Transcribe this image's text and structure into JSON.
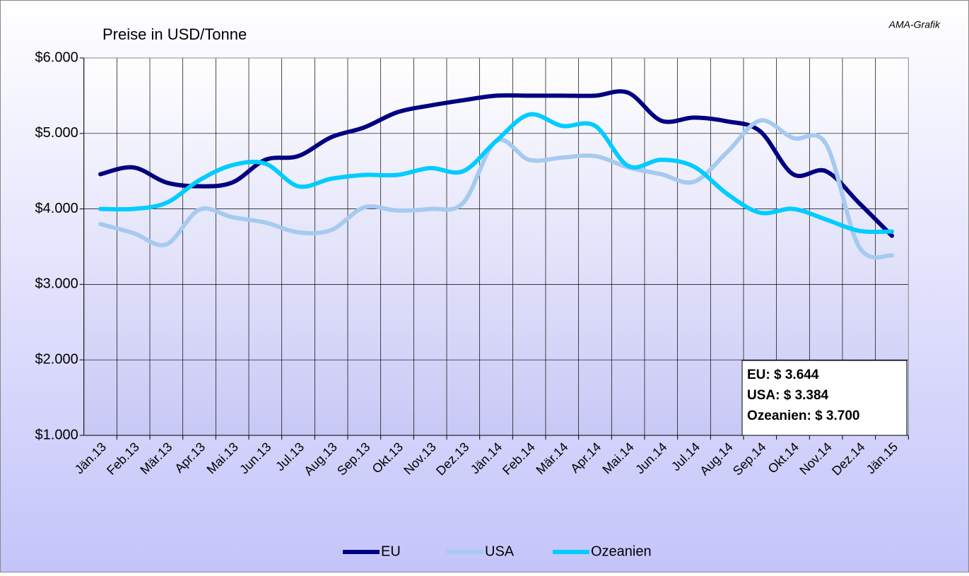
{
  "chart_data": {
    "type": "line",
    "title": "Preise in USD/Tonne",
    "source": "AMA-Grafik",
    "categories": [
      "Jän.13",
      "Feb.13",
      "Mär.13",
      "Apr.13",
      "Mai.13",
      "Jun.13",
      "Jul.13",
      "Aug.13",
      "Sep.13",
      "Okt.13",
      "Nov.13",
      "Dez.13",
      "Jän.14",
      "Feb.14",
      "Mär.14",
      "Apr.14",
      "Mai.14",
      "Jun.14",
      "Jul.14",
      "Aug.14",
      "Sep.14",
      "Okt.14",
      "Nov.14",
      "Dez.14",
      "Jän.15"
    ],
    "series": [
      {
        "name": "EU",
        "color": "#000080",
        "values": [
          4460,
          4550,
          4350,
          4300,
          4350,
          4650,
          4700,
          4950,
          5080,
          5280,
          5370,
          5440,
          5500,
          5500,
          5500,
          5500,
          5540,
          5170,
          5210,
          5160,
          5030,
          4460,
          4500,
          4080,
          3644
        ]
      },
      {
        "name": "USA",
        "color": "#a6caf0",
        "values": [
          3800,
          3680,
          3530,
          3990,
          3890,
          3820,
          3690,
          3720,
          4020,
          3980,
          4000,
          4080,
          4900,
          4650,
          4680,
          4700,
          4550,
          4460,
          4360,
          4750,
          5170,
          4940,
          4860,
          3500,
          3384
        ]
      },
      {
        "name": "Ozeanien",
        "color": "#00ccff",
        "values": [
          4000,
          4000,
          4080,
          4380,
          4580,
          4600,
          4300,
          4400,
          4450,
          4450,
          4540,
          4500,
          4900,
          5250,
          5100,
          5100,
          4570,
          4650,
          4560,
          4200,
          3950,
          4000,
          3860,
          3710,
          3700
        ]
      }
    ],
    "ylim": [
      1000,
      6000
    ],
    "yticks": [
      {
        "value": 1000,
        "label": "$1.000"
      },
      {
        "value": 2000,
        "label": "$2.000"
      },
      {
        "value": 3000,
        "label": "$3.000"
      },
      {
        "value": 4000,
        "label": "$4.000"
      },
      {
        "value": 5000,
        "label": "$5.000"
      },
      {
        "value": 6000,
        "label": "$6.000"
      }
    ],
    "grid": true,
    "legend": "bottom",
    "annotations": [
      "EU: $ 3.644",
      "USA: $ 3.384",
      "Ozeanien: $ 3.700"
    ]
  }
}
